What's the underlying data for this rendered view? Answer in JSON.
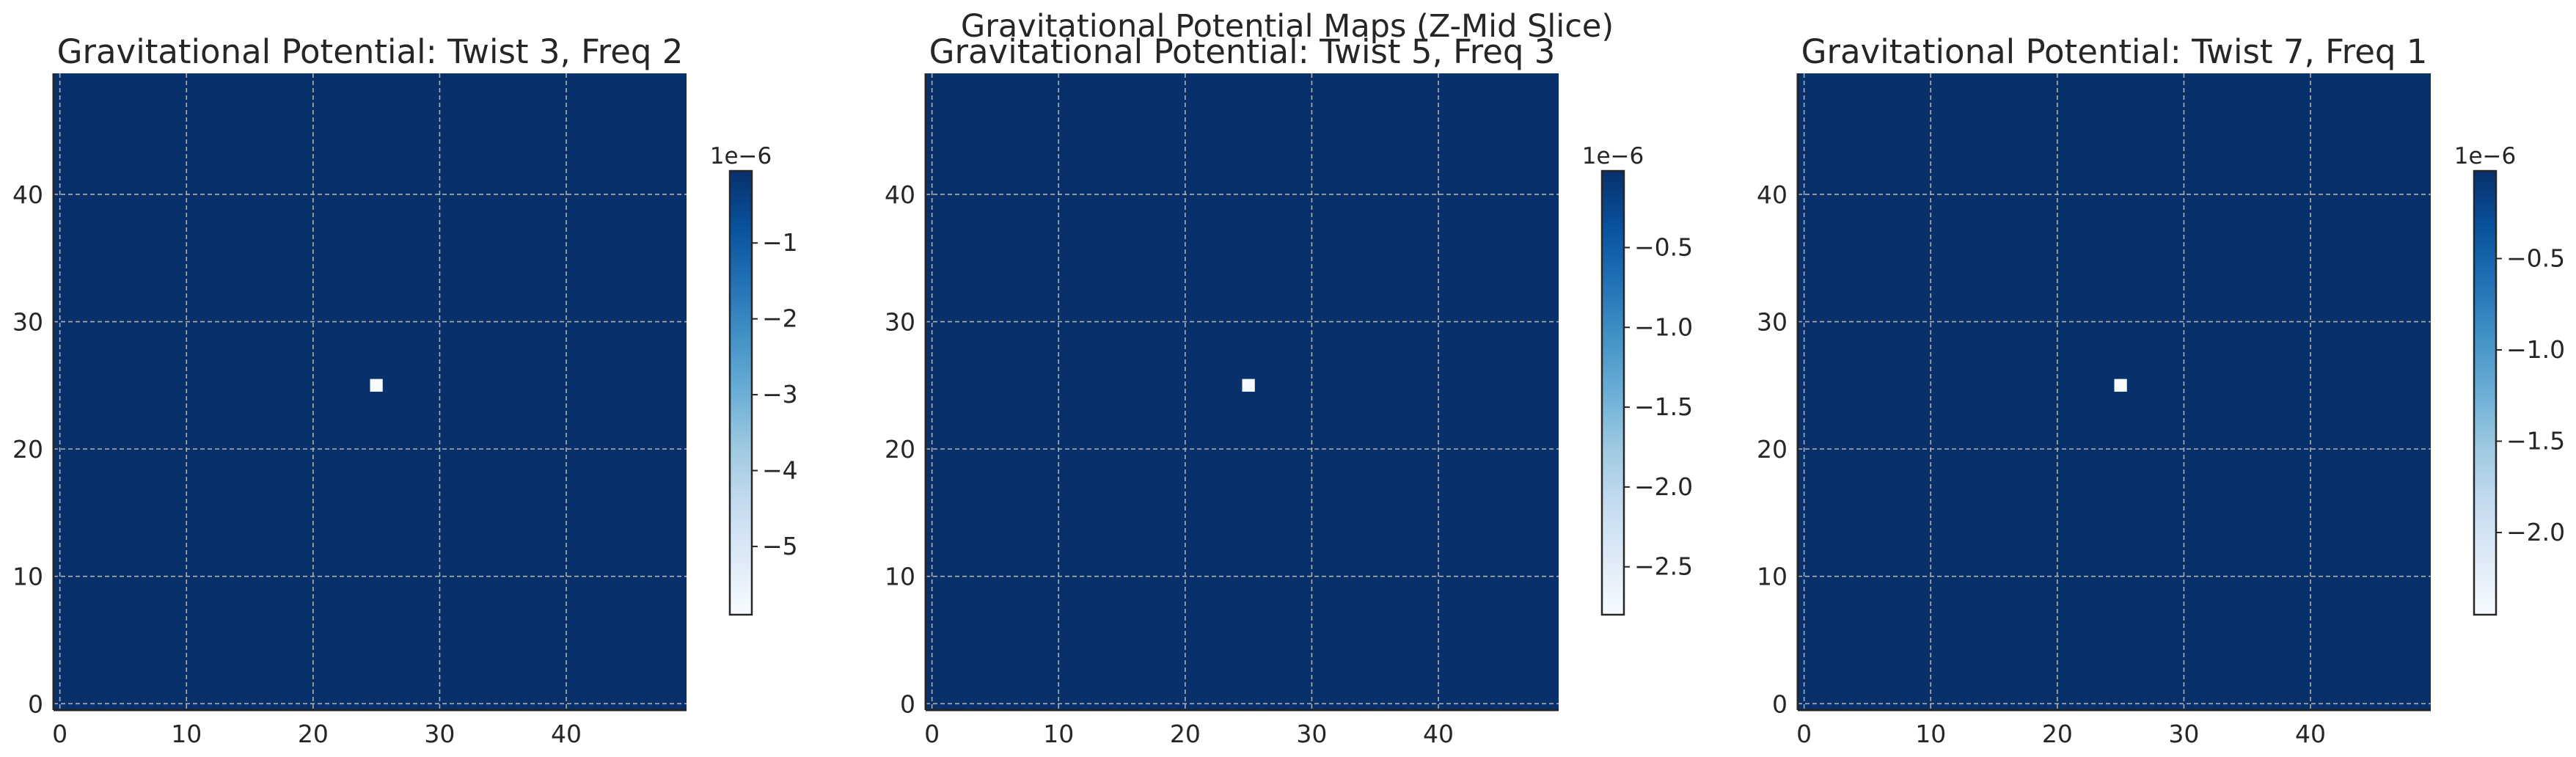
{
  "figure": {
    "suptitle": "Gravitational Potential Maps (Z-Mid Slice)"
  },
  "colors": {
    "field": "#08306b",
    "grid": "#b0b0b0",
    "hotspot": "#f7fbff",
    "colormap": [
      "#08306b",
      "#08519c",
      "#2171b5",
      "#4292c6",
      "#6baed6",
      "#9ecae1",
      "#c6dbef",
      "#deebf7",
      "#f7fbff"
    ],
    "axis": "#262626"
  },
  "chart_data": [
    {
      "type": "heatmap",
      "title": "Gravitational Potential: Twist 3, Freq 2",
      "xlim": [
        -0.5,
        49.5
      ],
      "ylim": [
        -0.5,
        49.5
      ],
      "xticks": [
        0,
        10,
        20,
        30,
        40
      ],
      "yticks": [
        0,
        10,
        20,
        30,
        40
      ],
      "grid": true,
      "field_value": -0.05,
      "hotspot": {
        "x": 25,
        "y": 25,
        "value": -5.8
      },
      "colorbar": {
        "multiplier": "1e−6",
        "min": -5.9,
        "max": -0.05,
        "ticks": [
          -1,
          -2,
          -3,
          -4,
          -5
        ],
        "ticklabels": [
          "−1",
          "−2",
          "−3",
          "−4",
          "−5"
        ]
      }
    },
    {
      "type": "heatmap",
      "title": "Gravitational Potential: Twist 5, Freq 3",
      "xlim": [
        -0.5,
        49.5
      ],
      "ylim": [
        -0.5,
        49.5
      ],
      "xticks": [
        0,
        10,
        20,
        30,
        40
      ],
      "yticks": [
        0,
        10,
        20,
        30,
        40
      ],
      "grid": true,
      "field_value": -0.02,
      "hotspot": {
        "x": 25,
        "y": 25,
        "value": -2.8
      },
      "colorbar": {
        "multiplier": "1e−6",
        "min": -2.8,
        "max": -0.02,
        "ticks": [
          -0.5,
          -1.0,
          -1.5,
          -2.0,
          -2.5
        ],
        "ticklabels": [
          "−0.5",
          "−1.0",
          "−1.5",
          "−2.0",
          "−2.5"
        ]
      }
    },
    {
      "type": "heatmap",
      "title": "Gravitational Potential: Twist 7, Freq 1",
      "xlim": [
        -0.5,
        49.5
      ],
      "ylim": [
        -0.5,
        49.5
      ],
      "xticks": [
        0,
        10,
        20,
        30,
        40
      ],
      "yticks": [
        0,
        10,
        20,
        30,
        40
      ],
      "grid": true,
      "field_value": -0.02,
      "hotspot": {
        "x": 25,
        "y": 25,
        "value": -2.45
      },
      "colorbar": {
        "multiplier": "1e−6",
        "min": -2.45,
        "max": -0.02,
        "ticks": [
          -0.5,
          -1.0,
          -1.5,
          -2.0
        ],
        "ticklabels": [
          "−0.5",
          "−1.0",
          "−1.5",
          "−2.0"
        ]
      }
    }
  ]
}
